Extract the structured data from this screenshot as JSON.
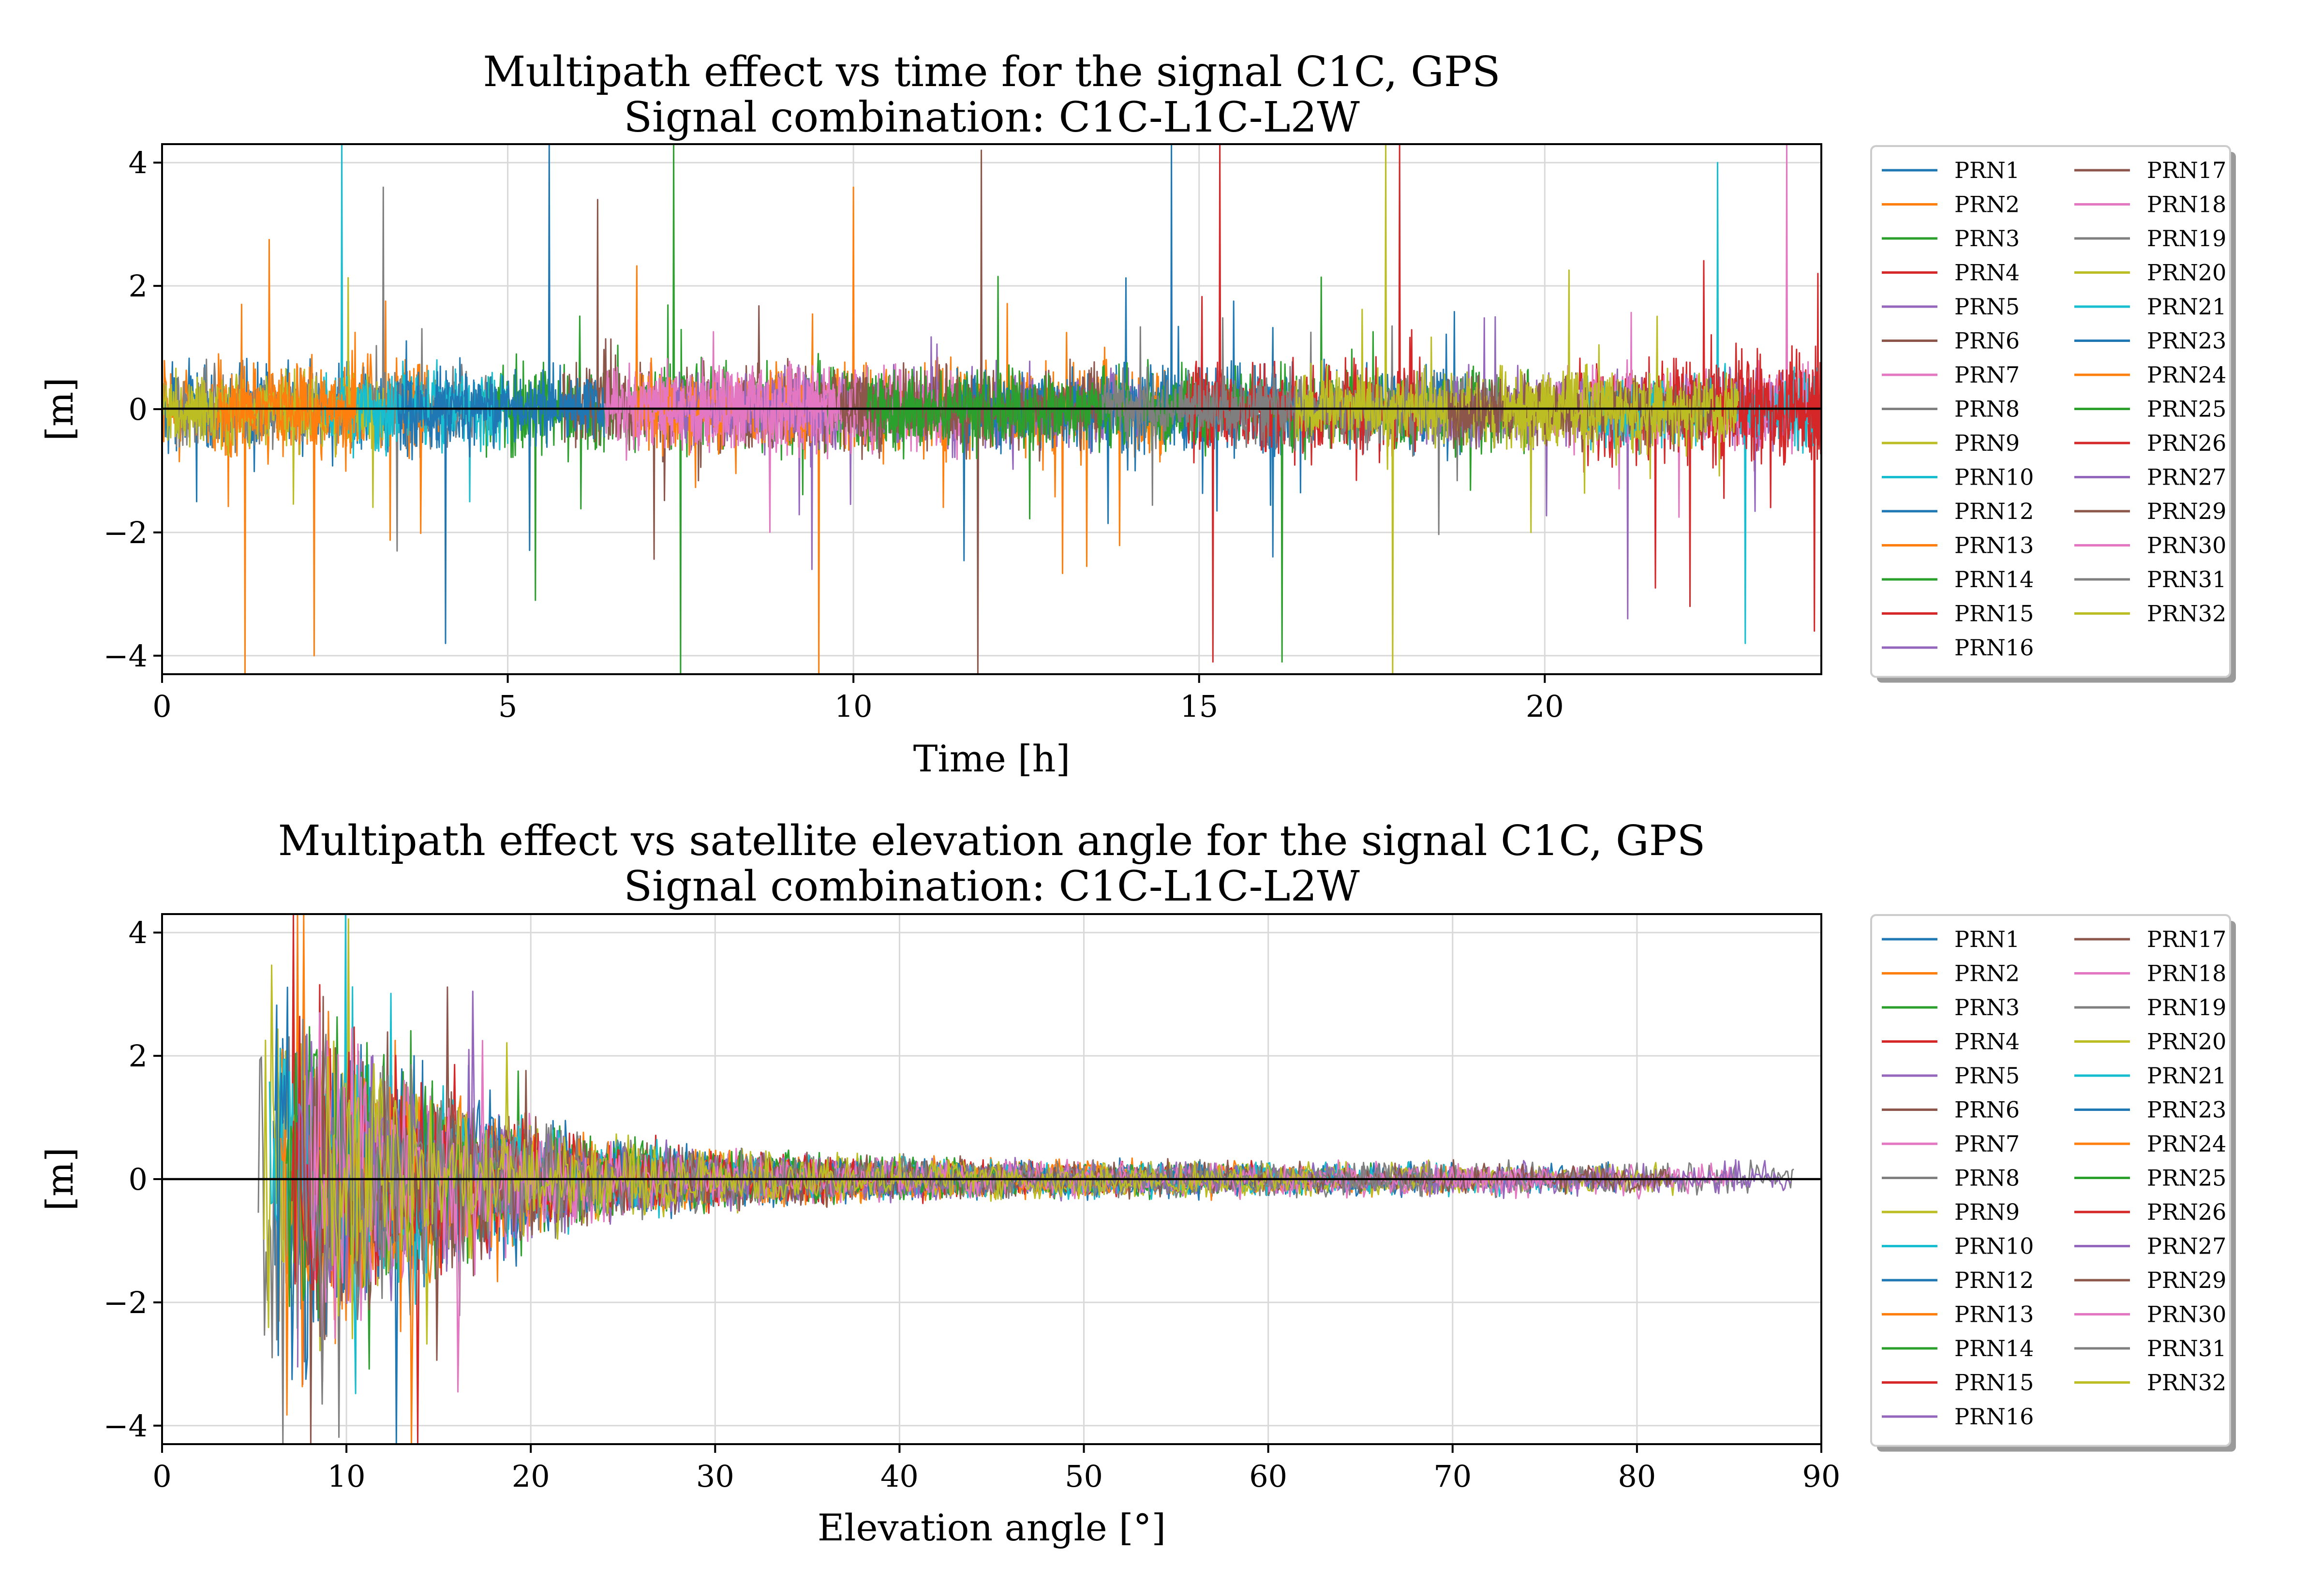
{
  "colors": {
    "palette": [
      "#1f77b4",
      "#ff7f0e",
      "#2ca02c",
      "#d62728",
      "#9467bd",
      "#8c564b",
      "#e377c2",
      "#7f7f7f",
      "#bcbd22",
      "#17becf"
    ],
    "zero_line": "#000000",
    "grid": "#d9d9d9"
  },
  "chart_data": [
    {
      "type": "line",
      "title_line1": "Multipath effect vs time for the signal C1C, GPS",
      "title_line2": "Signal combination: C1C-L1C-L2W",
      "xlabel": "Time [h]",
      "ylabel": "[m]",
      "xlim": [
        0,
        24
      ],
      "ylim": [
        -4.3,
        4.3
      ],
      "xticks": [
        0,
        5,
        10,
        15,
        20
      ],
      "yticks": [
        -4,
        -2,
        0,
        2,
        4
      ],
      "ytick_labels": [
        "−4",
        "−2",
        "0",
        "2",
        "4"
      ],
      "grid": true,
      "legend_placement": "outside-right",
      "legend_columns": 2,
      "series": [
        {
          "name": "PRN1",
          "color": "#1f77b4",
          "segments": [
            [
              0.0,
              4.4
            ],
            [
              13.8,
              19.0
            ]
          ],
          "amplitude": 0.55,
          "spikes": [
            [
              5.45,
              4.3
            ],
            [
              13.5,
              -3.3
            ]
          ]
        },
        {
          "name": "PRN2",
          "color": "#ff7f0e",
          "segments": [
            [
              0.0,
              4.0
            ],
            [
              8.8,
              14.5
            ]
          ],
          "amplitude": 0.6,
          "spikes": [
            [
              1.2,
              -4.3
            ],
            [
              1.55,
              2.75
            ],
            [
              9.5,
              -4.3
            ],
            [
              10.0,
              3.6
            ]
          ]
        },
        {
          "name": "PRN3",
          "color": "#2ca02c",
          "segments": [
            [
              4.6,
              10.6
            ]
          ],
          "amplitude": 0.6,
          "spikes": [
            [
              7.4,
              4.3
            ],
            [
              7.5,
              -4.3
            ],
            [
              5.4,
              -3.1
            ]
          ]
        },
        {
          "name": "PRN4",
          "color": "#d62728",
          "segments": [
            [
              20.5,
              24.0
            ]
          ],
          "amplitude": 0.7,
          "spikes": [
            [
              21.6,
              -2.9
            ],
            [
              23.95,
              2.2
            ],
            [
              23.9,
              -3.6
            ]
          ]
        },
        {
          "name": "PRN5",
          "color": "#9467bd",
          "segments": [
            [
              8.6,
              14.2
            ]
          ],
          "amplitude": 0.5,
          "spikes": [
            [
              9.4,
              -2.6
            ]
          ]
        },
        {
          "name": "PRN6",
          "color": "#8c564b",
          "segments": [
            [
              5.8,
              10.4
            ]
          ],
          "amplitude": 0.55,
          "spikes": [
            [
              6.3,
              3.4
            ]
          ]
        },
        {
          "name": "PRN7",
          "color": "#e377c2",
          "segments": [
            [
              6.4,
              11.6
            ]
          ],
          "amplitude": 0.55,
          "spikes": []
        },
        {
          "name": "PRN8",
          "color": "#7f7f7f",
          "segments": [
            [
              0.2,
              4.8
            ]
          ],
          "amplitude": 0.5,
          "spikes": [
            [
              3.2,
              3.6
            ],
            [
              3.4,
              -2.3
            ]
          ]
        },
        {
          "name": "PRN9",
          "color": "#bcbd22",
          "segments": [
            [
              0.0,
              3.2
            ]
          ],
          "amplitude": 0.5,
          "spikes": []
        },
        {
          "name": "PRN10",
          "color": "#17becf",
          "segments": [
            [
              2.3,
              5.0
            ]
          ],
          "amplitude": 0.5,
          "spikes": [
            [
              2.6,
              4.3
            ]
          ]
        },
        {
          "name": "PRN12",
          "color": "#1f77b4",
          "segments": [
            [
              11.5,
              16.4
            ]
          ],
          "amplitude": 0.5,
          "spikes": [
            [
              14.6,
              4.3
            ]
          ]
        },
        {
          "name": "PRN13",
          "color": "#ff7f0e",
          "segments": [
            [
              0.8,
              2.8
            ]
          ],
          "amplitude": 0.5,
          "spikes": [
            [
              2.2,
              -4.0
            ]
          ]
        },
        {
          "name": "PRN14",
          "color": "#2ca02c",
          "segments": [
            [
              14.2,
              19.8
            ]
          ],
          "amplitude": 0.5,
          "spikes": [
            [
              16.2,
              -4.1
            ]
          ]
        },
        {
          "name": "PRN15",
          "color": "#d62728",
          "segments": [
            [
              14.8,
              18.2
            ]
          ],
          "amplitude": 0.6,
          "spikes": [
            [
              15.2,
              -4.1
            ],
            [
              15.3,
              4.3
            ],
            [
              17.9,
              4.3
            ]
          ]
        },
        {
          "name": "PRN16",
          "color": "#9467bd",
          "segments": [
            [
              18.2,
              23.6
            ]
          ],
          "amplitude": 0.45,
          "spikes": [
            [
              21.2,
              -3.4
            ]
          ]
        },
        {
          "name": "PRN17",
          "color": "#8c564b",
          "segments": [
            [
              9.8,
              13.6
            ]
          ],
          "amplitude": 0.5,
          "spikes": [
            [
              11.85,
              4.2
            ],
            [
              11.8,
              -4.3
            ]
          ]
        },
        {
          "name": "PRN18",
          "color": "#e377c2",
          "segments": [
            [
              20.0,
              24.0
            ]
          ],
          "amplitude": 0.5,
          "spikes": [
            [
              23.5,
              4.3
            ]
          ]
        },
        {
          "name": "PRN19",
          "color": "#7f7f7f",
          "segments": [
            [
              15.8,
              19.4
            ]
          ],
          "amplitude": 0.45,
          "spikes": []
        },
        {
          "name": "PRN20",
          "color": "#bcbd22",
          "segments": [
            [
              16.4,
              21.6
            ]
          ],
          "amplitude": 0.5,
          "spikes": [
            [
              17.7,
              4.3
            ],
            [
              17.8,
              -4.3
            ],
            [
              19.8,
              -2.0
            ]
          ]
        },
        {
          "name": "PRN21",
          "color": "#17becf",
          "segments": [
            [
              20.6,
              24.0
            ]
          ],
          "amplitude": 0.5,
          "spikes": [
            [
              22.9,
              -3.8
            ],
            [
              22.5,
              4.0
            ]
          ]
        },
        {
          "name": "PRN23",
          "color": "#1f77b4",
          "segments": [
            [
              3.4,
              6.4
            ]
          ],
          "amplitude": 0.5,
          "spikes": [
            [
              4.1,
              -3.8
            ],
            [
              5.6,
              4.3
            ]
          ]
        },
        {
          "name": "PRN24",
          "color": "#ff7f0e",
          "segments": [
            [
              6.8,
              9.4
            ]
          ],
          "amplitude": 0.5,
          "spikes": []
        },
        {
          "name": "PRN25",
          "color": "#2ca02c",
          "segments": [
            [
              10.2,
              14.0
            ]
          ],
          "amplitude": 0.5,
          "spikes": []
        },
        {
          "name": "PRN26",
          "color": "#d62728",
          "segments": [
            [
              21.8,
              24.0
            ]
          ],
          "amplitude": 0.65,
          "spikes": [
            [
              22.1,
              -3.2
            ]
          ]
        },
        {
          "name": "PRN27",
          "color": "#9467bd",
          "segments": [
            [
              7.4,
              9.6
            ]
          ],
          "amplitude": 0.45,
          "spikes": []
        },
        {
          "name": "PRN29",
          "color": "#8c564b",
          "segments": [
            [
              18.6,
              22.4
            ]
          ],
          "amplitude": 0.45,
          "spikes": []
        },
        {
          "name": "PRN30",
          "color": "#e377c2",
          "segments": [
            [
              6.8,
              9.8
            ]
          ],
          "amplitude": 0.55,
          "spikes": [
            [
              6.2,
              -4.3
            ]
          ]
        },
        {
          "name": "PRN31",
          "color": "#7f7f7f",
          "segments": [
            [
              13.6,
              16.0
            ]
          ],
          "amplitude": 0.45,
          "spikes": []
        },
        {
          "name": "PRN32",
          "color": "#bcbd22",
          "segments": [
            [
              19.4,
              22.8
            ]
          ],
          "amplitude": 0.5,
          "spikes": []
        }
      ]
    },
    {
      "type": "line",
      "title_line1": "Multipath effect vs satellite elevation angle for the signal C1C, GPS",
      "title_line2": "Signal combination: C1C-L1C-L2W",
      "xlabel": "Elevation angle [°]",
      "ylabel": "[m]",
      "xlim": [
        0,
        90
      ],
      "ylim": [
        -4.3,
        4.3
      ],
      "xticks": [
        0,
        10,
        20,
        30,
        40,
        50,
        60,
        70,
        80,
        90
      ],
      "yticks": [
        -4,
        -2,
        0,
        2,
        4
      ],
      "ytick_labels": [
        "−4",
        "−2",
        "0",
        "2",
        "4"
      ],
      "grid": true,
      "legend_placement": "outside-right",
      "legend_columns": 2,
      "noise_model": {
        "min_elevation": 5,
        "peak_amplitude_m": 2.6,
        "floor_amplitude_m": 0.2,
        "decay_deg": 9
      }
    }
  ]
}
